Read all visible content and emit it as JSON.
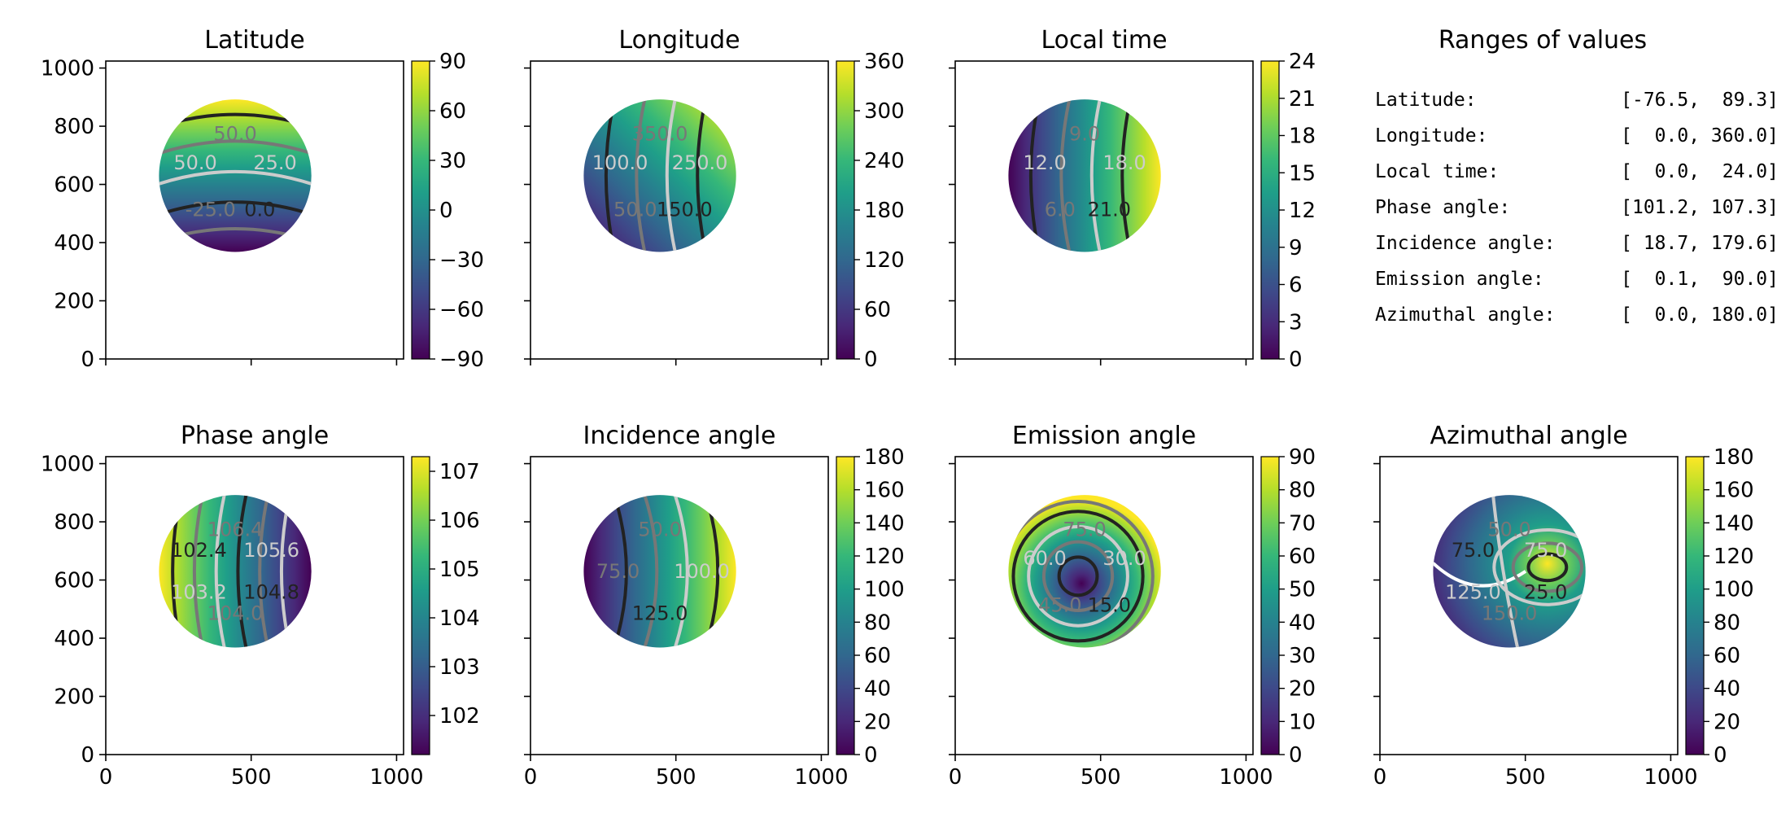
{
  "chart_data": [
    {
      "type": "heatmap",
      "title": "Latitude",
      "colormap": "viridis",
      "vmin": -90,
      "vmax": 90,
      "colorbar_ticks": [
        90,
        60,
        30,
        0,
        -30,
        -60,
        -90
      ],
      "colorbar_tick_labels": [
        "90",
        "60",
        "30",
        "0",
        "−30",
        "−60",
        "−90"
      ],
      "xlim": [
        0,
        1024
      ],
      "ylim": [
        0,
        1024
      ],
      "xticks": [
        0,
        500,
        1000
      ],
      "yticks": [
        0,
        200,
        400,
        600,
        800,
        1000
      ],
      "disk": {
        "center_x": 445,
        "center_y": 630,
        "radius": 262
      },
      "contour_labels": [
        "50.0",
        "25.0",
        "0.0",
        "-25.0",
        "50.0"
      ]
    },
    {
      "type": "heatmap",
      "title": "Longitude",
      "colormap": "viridis",
      "vmin": 0,
      "vmax": 360,
      "colorbar_ticks": [
        360,
        300,
        240,
        180,
        120,
        60,
        0
      ],
      "colorbar_tick_labels": [
        "360",
        "300",
        "240",
        "180",
        "120",
        "60",
        "0"
      ],
      "xlim": [
        0,
        1024
      ],
      "ylim": [
        0,
        1024
      ],
      "xticks": [
        0,
        500,
        1000
      ],
      "yticks": [
        0,
        200,
        400,
        600,
        800,
        1000
      ],
      "disk": {
        "center_x": 445,
        "center_y": 630,
        "radius": 262
      },
      "contour_labels": [
        "350.0",
        "250.0",
        "150.0",
        "50.0",
        "100.0"
      ]
    },
    {
      "type": "heatmap",
      "title": "Local time",
      "colormap": "viridis",
      "vmin": 0,
      "vmax": 24,
      "colorbar_ticks": [
        24,
        21,
        18,
        15,
        12,
        9,
        6,
        3,
        0
      ],
      "colorbar_tick_labels": [
        "24",
        "21",
        "18",
        "15",
        "12",
        "9",
        "6",
        "3",
        "0"
      ],
      "xlim": [
        0,
        1024
      ],
      "ylim": [
        0,
        1024
      ],
      "xticks": [
        0,
        500,
        1000
      ],
      "yticks": [
        0,
        200,
        400,
        600,
        800,
        1000
      ],
      "disk": {
        "center_x": 445,
        "center_y": 630,
        "radius": 262
      },
      "contour_labels": [
        "9.0",
        "18.0",
        "21.0",
        "6.0",
        "12.0"
      ]
    },
    {
      "type": "heatmap",
      "title": "Phase angle",
      "colormap": "viridis",
      "vmin": 101.2,
      "vmax": 107.3,
      "colorbar_ticks": [
        107,
        106,
        105,
        104,
        103,
        102
      ],
      "colorbar_tick_labels": [
        "107",
        "106",
        "105",
        "104",
        "103",
        "102"
      ],
      "xlim": [
        0,
        1024
      ],
      "ylim": [
        0,
        1024
      ],
      "xticks": [
        0,
        500,
        1000
      ],
      "yticks": [
        0,
        200,
        400,
        600,
        800,
        1000
      ],
      "disk": {
        "center_x": 445,
        "center_y": 630,
        "radius": 262
      },
      "contour_labels": [
        "106.4",
        "105.6",
        "104.8",
        "104.0",
        "103.2",
        "102.4"
      ]
    },
    {
      "type": "heatmap",
      "title": "Incidence angle",
      "colormap": "viridis",
      "vmin": 0,
      "vmax": 180,
      "colorbar_ticks": [
        180,
        160,
        140,
        120,
        100,
        80,
        60,
        40,
        20,
        0
      ],
      "colorbar_tick_labels": [
        "180",
        "160",
        "140",
        "120",
        "100",
        "80",
        "60",
        "40",
        "20",
        "0"
      ],
      "xlim": [
        0,
        1024
      ],
      "ylim": [
        0,
        1024
      ],
      "xticks": [
        0,
        500,
        1000
      ],
      "yticks": [
        0,
        200,
        400,
        600,
        800,
        1000
      ],
      "disk": {
        "center_x": 445,
        "center_y": 630,
        "radius": 262
      },
      "contour_labels": [
        "50.0",
        "100.0",
        "125.0",
        "75.0"
      ]
    },
    {
      "type": "heatmap",
      "title": "Emission angle",
      "colormap": "viridis",
      "vmin": 0,
      "vmax": 90,
      "colorbar_ticks": [
        90,
        80,
        70,
        60,
        50,
        40,
        30,
        20,
        10,
        0
      ],
      "colorbar_tick_labels": [
        "90",
        "80",
        "70",
        "60",
        "50",
        "40",
        "30",
        "20",
        "10",
        "0"
      ],
      "xlim": [
        0,
        1024
      ],
      "ylim": [
        0,
        1024
      ],
      "xticks": [
        0,
        500,
        1000
      ],
      "yticks": [
        0,
        200,
        400,
        600,
        800,
        1000
      ],
      "disk": {
        "center_x": 445,
        "center_y": 630,
        "radius": 262
      },
      "contour_labels": [
        "75.0",
        "30.0",
        "15.0",
        "45.0",
        "60.0"
      ]
    },
    {
      "type": "heatmap",
      "title": "Azimuthal angle",
      "colormap": "viridis",
      "vmin": 0,
      "vmax": 180,
      "colorbar_ticks": [
        180,
        160,
        140,
        120,
        100,
        80,
        60,
        40,
        20,
        0
      ],
      "colorbar_tick_labels": [
        "180",
        "160",
        "140",
        "120",
        "100",
        "80",
        "60",
        "40",
        "20",
        "0"
      ],
      "xlim": [
        0,
        1024
      ],
      "ylim": [
        0,
        1024
      ],
      "xticks": [
        0,
        500,
        1000
      ],
      "yticks": [
        0,
        200,
        400,
        600,
        800,
        1000
      ],
      "disk": {
        "center_x": 445,
        "center_y": 630,
        "radius": 262
      },
      "contour_labels": [
        "50.0",
        "75.0",
        "25.0",
        "150.0",
        "125.0",
        "75.0"
      ]
    },
    {
      "type": "table",
      "title": "Ranges of values",
      "rows": [
        {
          "label": "Latitude:",
          "range": "[-76.5,  89.3]"
        },
        {
          "label": "Longitude:",
          "range": "[  0.0, 360.0]"
        },
        {
          "label": "Local time:",
          "range": "[  0.0,  24.0]"
        },
        {
          "label": "Phase angle:",
          "range": "[101.2, 107.3]"
        },
        {
          "label": "Incidence angle:",
          "range": "[ 18.7, 179.6]"
        },
        {
          "label": "Emission angle:",
          "range": "[  0.1,  90.0]"
        },
        {
          "label": "Azimuthal angle:",
          "range": "[  0.0, 180.0]"
        }
      ]
    }
  ],
  "colors": {
    "axis": "#000000",
    "background": "#ffffff",
    "contour_dark": "#222222",
    "contour_mid": "#777777",
    "contour_light": "#cccccc"
  }
}
